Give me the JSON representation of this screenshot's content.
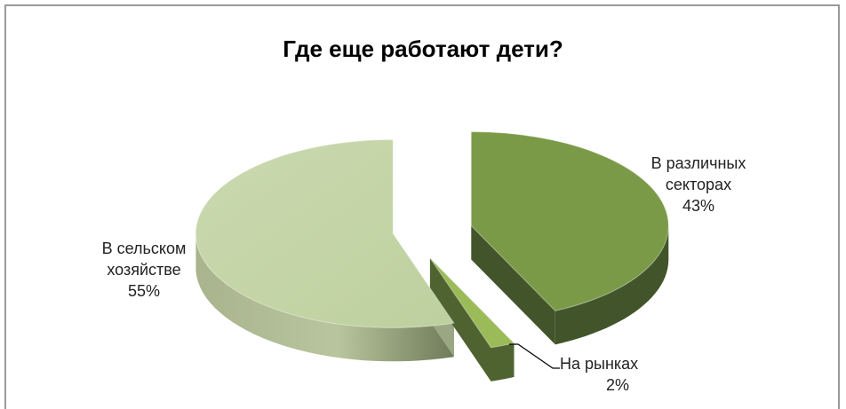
{
  "chart_data": {
    "type": "pie",
    "title": "Где еще работают дети?",
    "slices": [
      {
        "label_lines": [
          "В  различных",
          "секторах"
        ],
        "percent_label": "43%",
        "value": 43,
        "color": "#7a9a48",
        "side_color": "#42552a"
      },
      {
        "label_lines": [
          "На рынках"
        ],
        "percent_label": "2%",
        "value": 2,
        "color": "#9bbb59",
        "side_color": "#4f6330"
      },
      {
        "label_lines": [
          "В сельском",
          "хозяйстве"
        ],
        "percent_label": "55%",
        "value": 55,
        "color": "#c4d6a8",
        "side_color": "#9aa782"
      }
    ],
    "style": "3d-exploded"
  }
}
